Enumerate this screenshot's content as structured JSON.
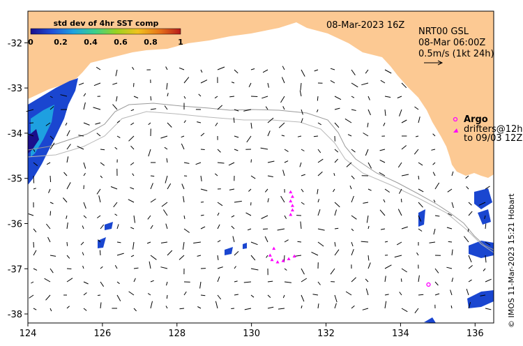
{
  "colorbar": {
    "title": "std dev of 4hr SST comp",
    "tick_labels": [
      "0",
      "0.2",
      "0.4",
      "0.6",
      "0.8",
      "1"
    ],
    "range": [
      0,
      1
    ],
    "colors": [
      "#1a0f8c",
      "#1f4fd9",
      "#1ea3e0",
      "#3cd08a",
      "#9ad21f",
      "#f0c21e",
      "#e8761a",
      "#b61a1a"
    ]
  },
  "header": {
    "date": "08-Mar-2023 16Z",
    "product_title": "NRT00 GSL",
    "product_time": "08-Mar 06:00Z",
    "scale_label": "0.5m/s (1kt 24h)"
  },
  "legend": {
    "argo_label": "Argo",
    "drifters_line1": "drifters@12h",
    "drifters_line2": "to 09/03 12Z"
  },
  "axes": {
    "x_ticks": [
      "124",
      "126",
      "128",
      "130",
      "132",
      "134",
      "136"
    ],
    "x_values": [
      124,
      126,
      128,
      130,
      132,
      134,
      136
    ],
    "y_ticks": [
      "-32",
      "-33",
      "-34",
      "-35",
      "-36",
      "-37",
      "-38"
    ],
    "y_values": [
      -32,
      -33,
      -34,
      -35,
      -36,
      -37,
      -38
    ],
    "lon_range": [
      124,
      136.5
    ],
    "lat_range": [
      -38.2,
      -31.3
    ]
  },
  "credit": "© IMOS 11-Mar-2023 15:21 Hobart",
  "colors": {
    "land": "#fcc993",
    "current_vectors": "#000000",
    "drifters": "#ff00ff",
    "argo": "#ff00ff",
    "bathymetry_contour": "#9a9a9a"
  },
  "drifter_tracks": [
    [
      [
        131.05,
        -35.3
      ],
      [
        131.1,
        -35.4
      ],
      [
        131.05,
        -35.5
      ],
      [
        131.1,
        -35.6
      ],
      [
        131.1,
        -35.7
      ],
      [
        131.05,
        -35.8
      ]
    ],
    [
      [
        130.6,
        -36.55
      ],
      [
        130.5,
        -36.7
      ],
      [
        130.55,
        -36.8
      ],
      [
        130.7,
        -36.85
      ],
      [
        130.85,
        -36.82
      ],
      [
        131.0,
        -36.78
      ],
      [
        131.15,
        -36.72
      ]
    ]
  ],
  "argo_floats": [
    {
      "lon": 134.75,
      "lat": -37.35
    }
  ]
}
